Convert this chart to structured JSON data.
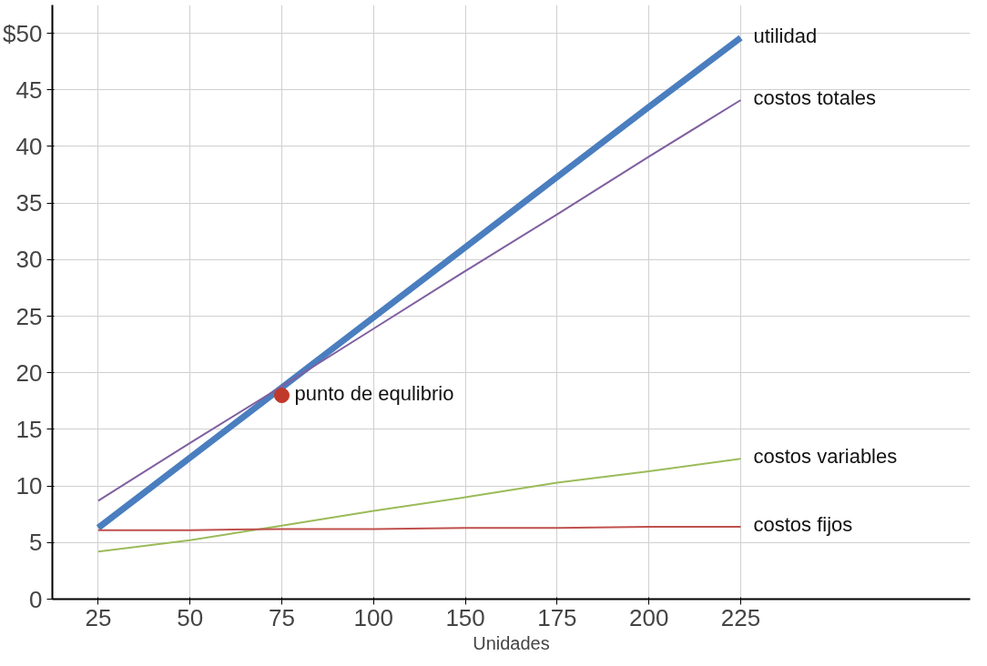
{
  "chart_data": {
    "type": "line",
    "xlabel": "Unidades",
    "categories": [
      "25",
      "50",
      "75",
      "100",
      "150",
      "175",
      "200",
      "225"
    ],
    "ylim": [
      0,
      52.5
    ],
    "yticks": [
      0,
      5,
      10,
      15,
      20,
      25,
      30,
      35,
      40,
      45,
      {
        "value": 50,
        "label": "$50"
      }
    ],
    "grid": true,
    "line_style": "solid",
    "series": [
      {
        "name": "utilidad",
        "color": "#4a7ebf",
        "values": [
          6.3,
          12.5,
          18.7,
          24.9,
          31.1,
          37.3,
          43.5,
          49.6
        ]
      },
      {
        "name": "costos totales",
        "color": "#7f5fa0",
        "values": [
          8.7,
          13.8,
          18.8,
          23.9,
          29.0,
          34.0,
          39.1,
          44.1
        ]
      },
      {
        "name": "costos variables",
        "color": "#9bbb59",
        "values": [
          4.2,
          5.2,
          6.5,
          7.8,
          9.0,
          10.3,
          11.3,
          12.4
        ]
      },
      {
        "name": "costos fijos",
        "color": "#c0504d",
        "values": [
          6.1,
          6.1,
          6.2,
          6.2,
          6.3,
          6.3,
          6.4,
          6.4
        ]
      },
      {
        "name": "punto de equlibrio",
        "type": "scatter",
        "marker": "circle",
        "color": "#c0392b",
        "x": [
          "75"
        ],
        "values": [
          18.0
        ]
      }
    ]
  }
}
